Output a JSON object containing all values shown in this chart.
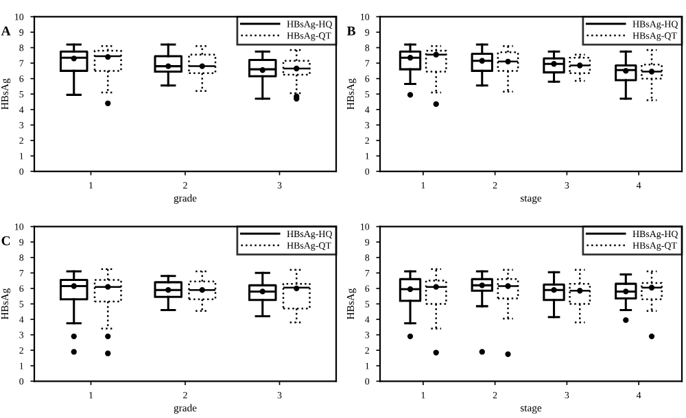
{
  "chart_data": [
    {
      "type": "box",
      "title": "A",
      "xlabel": "grade",
      "ylabel": "HBsAg",
      "categories": [
        "1",
        "2",
        "3"
      ],
      "ylim": [
        0,
        10
      ],
      "yticks": [
        0,
        1,
        2,
        3,
        4,
        5,
        6,
        7,
        8,
        9,
        10
      ],
      "legend": "top right",
      "grid": false,
      "marker": "circle",
      "series": [
        {
          "name": "HBsAg-HQ",
          "color": "#000000",
          "line_style": "solid",
          "boxes": [
            {
              "low": 4.95,
              "q1": 6.5,
              "median": 7.35,
              "q3": 7.75,
              "high": 8.2,
              "mean": 7.3
            },
            {
              "low": 5.55,
              "q1": 6.45,
              "median": 6.8,
              "q3": 7.45,
              "high": 8.2,
              "mean": 6.8
            },
            {
              "low": 4.7,
              "q1": 6.15,
              "median": 6.6,
              "q3": 7.2,
              "high": 7.75,
              "mean": 6.55
            }
          ]
        },
        {
          "name": "HBsAg-QT",
          "color": "#000000",
          "line_style": "dotted",
          "boxes": [
            {
              "low": 5.1,
              "q1": 6.5,
              "median": 7.45,
              "q3": 7.8,
              "high": 8.1,
              "mean": 7.4,
              "outliers": [
                4.4
              ]
            },
            {
              "low": 5.2,
              "q1": 6.35,
              "median": 6.8,
              "q3": 7.55,
              "high": 8.1,
              "mean": 6.8
            },
            {
              "low": 5.05,
              "q1": 6.25,
              "median": 6.65,
              "q3": 7.15,
              "high": 7.85,
              "mean": 6.65,
              "outliers": [
                4.7,
                4.85
              ]
            }
          ]
        }
      ]
    },
    {
      "type": "box",
      "title": "B",
      "xlabel": "stage",
      "ylabel": "HBsAg",
      "categories": [
        "1",
        "2",
        "3",
        "4"
      ],
      "ylim": [
        0,
        10
      ],
      "yticks": [
        0,
        1,
        2,
        3,
        4,
        5,
        6,
        7,
        8,
        9,
        10
      ],
      "legend": "top right",
      "grid": false,
      "marker": "circle",
      "series": [
        {
          "name": "HBsAg-HQ",
          "color": "#000000",
          "line_style": "solid",
          "boxes": [
            {
              "low": 5.65,
              "q1": 6.6,
              "median": 7.35,
              "q3": 7.75,
              "high": 8.2,
              "mean": 7.35,
              "outliers": [
                4.95
              ]
            },
            {
              "low": 5.55,
              "q1": 6.5,
              "median": 7.15,
              "q3": 7.6,
              "high": 8.2,
              "mean": 7.15
            },
            {
              "low": 5.8,
              "q1": 6.4,
              "median": 6.95,
              "q3": 7.3,
              "high": 7.75,
              "mean": 6.95
            },
            {
              "low": 4.7,
              "q1": 5.9,
              "median": 6.55,
              "q3": 6.85,
              "high": 7.75,
              "mean": 6.5
            }
          ]
        },
        {
          "name": "HBsAg-QT",
          "color": "#000000",
          "line_style": "dotted",
          "boxes": [
            {
              "low": 5.1,
              "q1": 6.45,
              "median": 7.55,
              "q3": 7.8,
              "high": 8.1,
              "mean": 7.55,
              "outliers": [
                4.35
              ]
            },
            {
              "low": 5.15,
              "q1": 6.5,
              "median": 7.1,
              "q3": 7.7,
              "high": 8.1,
              "mean": 7.1
            },
            {
              "low": 5.85,
              "q1": 6.35,
              "median": 6.85,
              "q3": 7.35,
              "high": 7.55,
              "mean": 6.85
            },
            {
              "low": 4.6,
              "q1": 6.0,
              "median": 6.45,
              "q3": 6.9,
              "high": 7.85,
              "mean": 6.45
            }
          ]
        }
      ]
    },
    {
      "type": "box",
      "title": "C",
      "xlabel": "grade",
      "ylabel": "HBsAg",
      "categories": [
        "1",
        "2",
        "3"
      ],
      "ylim": [
        0,
        10
      ],
      "yticks": [
        0,
        1,
        2,
        3,
        4,
        5,
        6,
        7,
        8,
        9,
        10
      ],
      "legend": "top right",
      "grid": false,
      "marker": "circle",
      "series": [
        {
          "name": "HBsAg-HQ",
          "color": "#000000",
          "line_style": "solid",
          "boxes": [
            {
              "low": 3.75,
              "q1": 5.3,
              "median": 6.15,
              "q3": 6.55,
              "high": 7.1,
              "mean": 6.15,
              "outliers": [
                2.9,
                1.9
              ]
            },
            {
              "low": 4.6,
              "q1": 5.45,
              "median": 5.9,
              "q3": 6.4,
              "high": 6.8,
              "mean": 5.9
            },
            {
              "low": 4.2,
              "q1": 5.25,
              "median": 5.8,
              "q3": 6.2,
              "high": 7.0,
              "mean": 5.8
            }
          ]
        },
        {
          "name": "HBsAg-QT",
          "color": "#000000",
          "line_style": "dotted",
          "boxes": [
            {
              "low": 3.4,
              "q1": 5.15,
              "median": 6.1,
              "q3": 6.55,
              "high": 7.25,
              "mean": 6.1,
              "outliers": [
                2.9,
                1.8
              ]
            },
            {
              "low": 4.55,
              "q1": 5.3,
              "median": 5.9,
              "q3": 6.45,
              "high": 7.1,
              "mean": 5.9
            },
            {
              "low": 3.8,
              "q1": 4.7,
              "median": 6.05,
              "q3": 6.3,
              "high": 7.2,
              "mean": 6.0
            }
          ]
        }
      ]
    },
    {
      "type": "box",
      "xlabel": "stage",
      "ylabel": "HBsAg",
      "categories": [
        "1",
        "2",
        "3",
        "4"
      ],
      "ylim": [
        0,
        10
      ],
      "yticks": [
        0,
        1,
        2,
        3,
        4,
        5,
        6,
        7,
        8,
        9,
        10
      ],
      "legend": "top right",
      "grid": false,
      "marker": "circle",
      "series": [
        {
          "name": "HBsAg-HQ",
          "color": "#000000",
          "line_style": "solid",
          "boxes": [
            {
              "low": 3.75,
              "q1": 5.2,
              "median": 5.95,
              "q3": 6.6,
              "high": 7.1,
              "mean": 5.95,
              "outliers": [
                2.9
              ]
            },
            {
              "low": 4.85,
              "q1": 5.85,
              "median": 6.2,
              "q3": 6.6,
              "high": 7.1,
              "mean": 6.2,
              "outliers": [
                1.9
              ]
            },
            {
              "low": 4.15,
              "q1": 5.25,
              "median": 5.9,
              "q3": 6.25,
              "high": 7.05,
              "mean": 5.9
            },
            {
              "low": 4.6,
              "q1": 5.35,
              "median": 5.8,
              "q3": 6.3,
              "high": 6.9,
              "mean": 5.8,
              "outliers": [
                3.95
              ]
            }
          ]
        },
        {
          "name": "HBsAg-QT",
          "color": "#000000",
          "line_style": "dotted",
          "boxes": [
            {
              "low": 3.4,
              "q1": 5.0,
              "median": 6.1,
              "q3": 6.5,
              "high": 7.25,
              "mean": 6.1,
              "outliers": [
                1.85
              ]
            },
            {
              "low": 4.05,
              "q1": 5.35,
              "median": 6.15,
              "q3": 6.6,
              "high": 7.2,
              "mean": 6.15,
              "outliers": [
                1.75
              ]
            },
            {
              "low": 3.8,
              "q1": 5.0,
              "median": 5.85,
              "q3": 6.3,
              "high": 7.2,
              "mean": 5.85
            },
            {
              "low": 4.55,
              "q1": 5.3,
              "median": 6.05,
              "q3": 6.35,
              "high": 7.1,
              "mean": 6.05,
              "outliers": [
                2.9
              ]
            }
          ]
        }
      ]
    }
  ]
}
